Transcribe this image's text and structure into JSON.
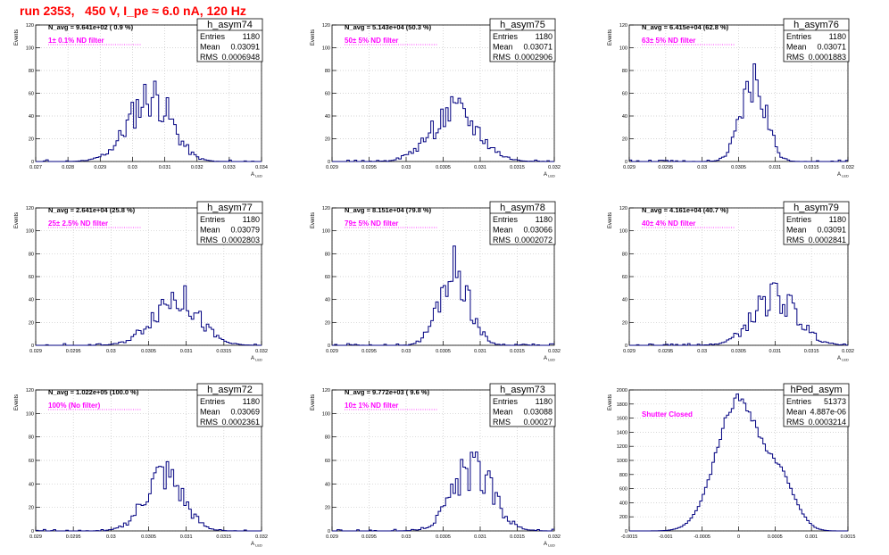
{
  "run_title": "run 2353,   450 V, I_pe ≈ 6.0 nA, 120 Hz",
  "colors": {
    "title": "#ff0000",
    "histogram": "#000080",
    "label": "#ff00ff",
    "grid": "#c8c8c8"
  },
  "stats_labels": {
    "entries": "Entries",
    "mean": "Mean",
    "rms": "RMS"
  },
  "chart_data": [
    {
      "type": "histogram",
      "name": "h_asym74",
      "xlabel": "A_LED",
      "ylabel": "Events",
      "xlim": [
        0.027,
        0.034
      ],
      "ylim": [
        0,
        120
      ],
      "xticks": [
        0.027,
        0.028,
        0.029,
        0.03,
        0.031,
        0.032,
        0.033,
        0.034
      ],
      "xtick_labels": [
        "0.027",
        "0.028",
        "0.029",
        "0.03",
        "0.031",
        "0.032",
        "0.033",
        "0.034"
      ],
      "yticks": [
        0,
        20,
        40,
        60,
        80,
        100,
        120
      ],
      "navg": "N_avg = 9.641e+02 ( 0.9 %)",
      "filter": "1± 0.1% ND filter",
      "entries": "1180",
      "mean": "0.03091",
      "rms": "0.0006948",
      "peak": 68,
      "peak_x": 0.0306,
      "sigma": 0.00065,
      "skew": 0.15,
      "seed": 11,
      "grid": true
    },
    {
      "type": "histogram",
      "name": "h_asym75",
      "xlabel": "A_LED",
      "ylabel": "Events",
      "xlim": [
        0.029,
        0.032
      ],
      "ylim": [
        0,
        120
      ],
      "xticks": [
        0.029,
        0.0295,
        0.03,
        0.0305,
        0.031,
        0.0315,
        0.032
      ],
      "xtick_labels": [
        "0.029",
        "0.0295",
        "0.03",
        "0.0305",
        "0.031",
        "0.0315",
        "0.032"
      ],
      "yticks": [
        0,
        20,
        40,
        60,
        80,
        100,
        120
      ],
      "navg": "N_avg = 5.143e+04 (50.3 %)",
      "filter": "50± 5% ND filter",
      "entries": "1180",
      "mean": "0.03071",
      "rms": "0.0002906",
      "peak": 50,
      "peak_x": 0.03065,
      "sigma": 0.00032,
      "skew": 0,
      "seed": 22,
      "grid": true
    },
    {
      "type": "histogram",
      "name": "h_asym76",
      "xlabel": "A_LED",
      "ylabel": "Events",
      "xlim": [
        0.029,
        0.032
      ],
      "ylim": [
        0,
        120
      ],
      "xticks": [
        0.029,
        0.0295,
        0.03,
        0.0305,
        0.031,
        0.0315,
        0.032
      ],
      "xtick_labels": [
        "0.029",
        "0.0295",
        "0.03",
        "0.0305",
        "0.031",
        "0.0315",
        "0.032"
      ],
      "yticks": [
        0,
        20,
        40,
        60,
        80,
        100,
        120
      ],
      "navg": "N_avg = 6.415e+04 (62.8 %)",
      "filter": "63± 5% ND filter",
      "entries": "1180",
      "mean": "0.03071",
      "rms": "0.0001883",
      "peak": 80,
      "peak_x": 0.03072,
      "sigma": 0.00017,
      "skew": 0.1,
      "seed": 33,
      "grid": true
    },
    {
      "type": "histogram",
      "name": "h_asym77",
      "xlabel": "A_LED",
      "ylabel": "Events",
      "xlim": [
        0.029,
        0.032
      ],
      "ylim": [
        0,
        120
      ],
      "xticks": [
        0.029,
        0.0295,
        0.03,
        0.0305,
        0.031,
        0.0315,
        0.032
      ],
      "xtick_labels": [
        "0.029",
        "0.0295",
        "0.03",
        "0.0305",
        "0.031",
        "0.0315",
        "0.032"
      ],
      "yticks": [
        0,
        20,
        40,
        60,
        80,
        100,
        120
      ],
      "navg": "N_avg = 2.641e+04 (25.8 %)",
      "filter": "25± 2.5% ND filter",
      "entries": "1180",
      "mean": "0.03079",
      "rms": "0.0002803",
      "peak": 50,
      "peak_x": 0.03085,
      "sigma": 0.0003,
      "skew": 0,
      "seed": 44,
      "grid": true
    },
    {
      "type": "histogram",
      "name": "h_asym78",
      "xlabel": "A_LED",
      "ylabel": "Events",
      "xlim": [
        0.029,
        0.032
      ],
      "ylim": [
        0,
        120
      ],
      "xticks": [
        0.029,
        0.0295,
        0.03,
        0.0305,
        0.031,
        0.0315,
        0.032
      ],
      "xtick_labels": [
        "0.029",
        "0.0295",
        "0.03",
        "0.0305",
        "0.031",
        "0.0315",
        "0.032"
      ],
      "yticks": [
        0,
        20,
        40,
        60,
        80,
        100,
        120
      ],
      "navg": "N_avg = 8.151e+04 (79.8 %)",
      "filter": "79± 5% ND filter",
      "entries": "1180",
      "mean": "0.03066",
      "rms": "0.0002072",
      "peak": 76,
      "peak_x": 0.03065,
      "sigma": 0.0002,
      "skew": 0,
      "seed": 55,
      "grid": true
    },
    {
      "type": "histogram",
      "name": "h_asym79",
      "xlabel": "A_LED",
      "ylabel": "Events",
      "xlim": [
        0.029,
        0.032
      ],
      "ylim": [
        0,
        120
      ],
      "xticks": [
        0.029,
        0.0295,
        0.03,
        0.0305,
        0.031,
        0.0315,
        0.032
      ],
      "xtick_labels": [
        "0.029",
        "0.0295",
        "0.03",
        "0.0305",
        "0.031",
        "0.0315",
        "0.032"
      ],
      "yticks": [
        0,
        20,
        40,
        60,
        80,
        100,
        120
      ],
      "navg": "N_avg = 4.161e+04 (40.7 %)",
      "filter": "40± 4% ND filter",
      "entries": "1180",
      "mean": "0.03091",
      "rms": "0.0002841",
      "peak": 50,
      "peak_x": 0.031,
      "sigma": 0.0003,
      "skew": 0,
      "seed": 66,
      "grid": true
    },
    {
      "type": "histogram",
      "name": "h_asym72",
      "xlabel": "A_LED",
      "ylabel": "Events",
      "xlim": [
        0.029,
        0.032
      ],
      "ylim": [
        0,
        120
      ],
      "xticks": [
        0.029,
        0.0295,
        0.03,
        0.0305,
        0.031,
        0.0315,
        0.032
      ],
      "xtick_labels": [
        "0.029",
        "0.0295",
        "0.03",
        "0.0305",
        "0.031",
        "0.0315",
        "0.032"
      ],
      "yticks": [
        0,
        20,
        40,
        60,
        80,
        100,
        120
      ],
      "navg": "N_avg = 1.022e+05 (100.0 %)",
      "filter": "100% (No filter)",
      "entries": "1180",
      "mean": "0.03069",
      "rms": "0.0002361",
      "peak": 56,
      "peak_x": 0.0307,
      "sigma": 0.00025,
      "skew": 0,
      "seed": 77,
      "grid": true
    },
    {
      "type": "histogram",
      "name": "h_asym73",
      "xlabel": "A_LED",
      "ylabel": "Events",
      "xlim": [
        0.029,
        0.032
      ],
      "ylim": [
        0,
        120
      ],
      "xticks": [
        0.029,
        0.0295,
        0.03,
        0.0305,
        0.031,
        0.0315,
        0.032
      ],
      "xtick_labels": [
        "0.029",
        "0.0295",
        "0.03",
        "0.0305",
        "0.031",
        "0.0315",
        "0.032"
      ],
      "yticks": [
        0,
        20,
        40,
        60,
        80,
        100,
        120
      ],
      "navg": "N_avg = 9.772e+03 ( 9.6 %)",
      "filter": "10± 1% ND filter",
      "entries": "1180",
      "mean": "0.03088",
      "rms": "0.00027",
      "peak": 62,
      "peak_x": 0.0309,
      "sigma": 0.00027,
      "skew": 0,
      "seed": 88,
      "grid": true
    },
    {
      "type": "histogram",
      "name": "hPed_asym",
      "xlabel": "",
      "ylabel": "Events",
      "xlim": [
        -0.0015,
        0.0015
      ],
      "ylim": [
        0,
        2000
      ],
      "xticks": [
        -0.0015,
        -0.001,
        -0.0005,
        0,
        0.0005,
        0.001,
        0.0015
      ],
      "xtick_labels": [
        "-0.0015",
        "-0.001",
        "-0.0005",
        "0",
        "0.0005",
        "0.001",
        "0.0015"
      ],
      "yticks": [
        0,
        200,
        400,
        600,
        800,
        1000,
        1200,
        1400,
        1600,
        1800,
        2000
      ],
      "navg": "",
      "filter": "Shutter Closed",
      "entries": "51373",
      "mean": "4.887e-06",
      "rms": "0.0003214",
      "peak": 1950,
      "peak_x": 0.0,
      "sigma": 0.0003,
      "skew": 0,
      "seed": 99,
      "shoulder": true,
      "grid": true
    }
  ]
}
